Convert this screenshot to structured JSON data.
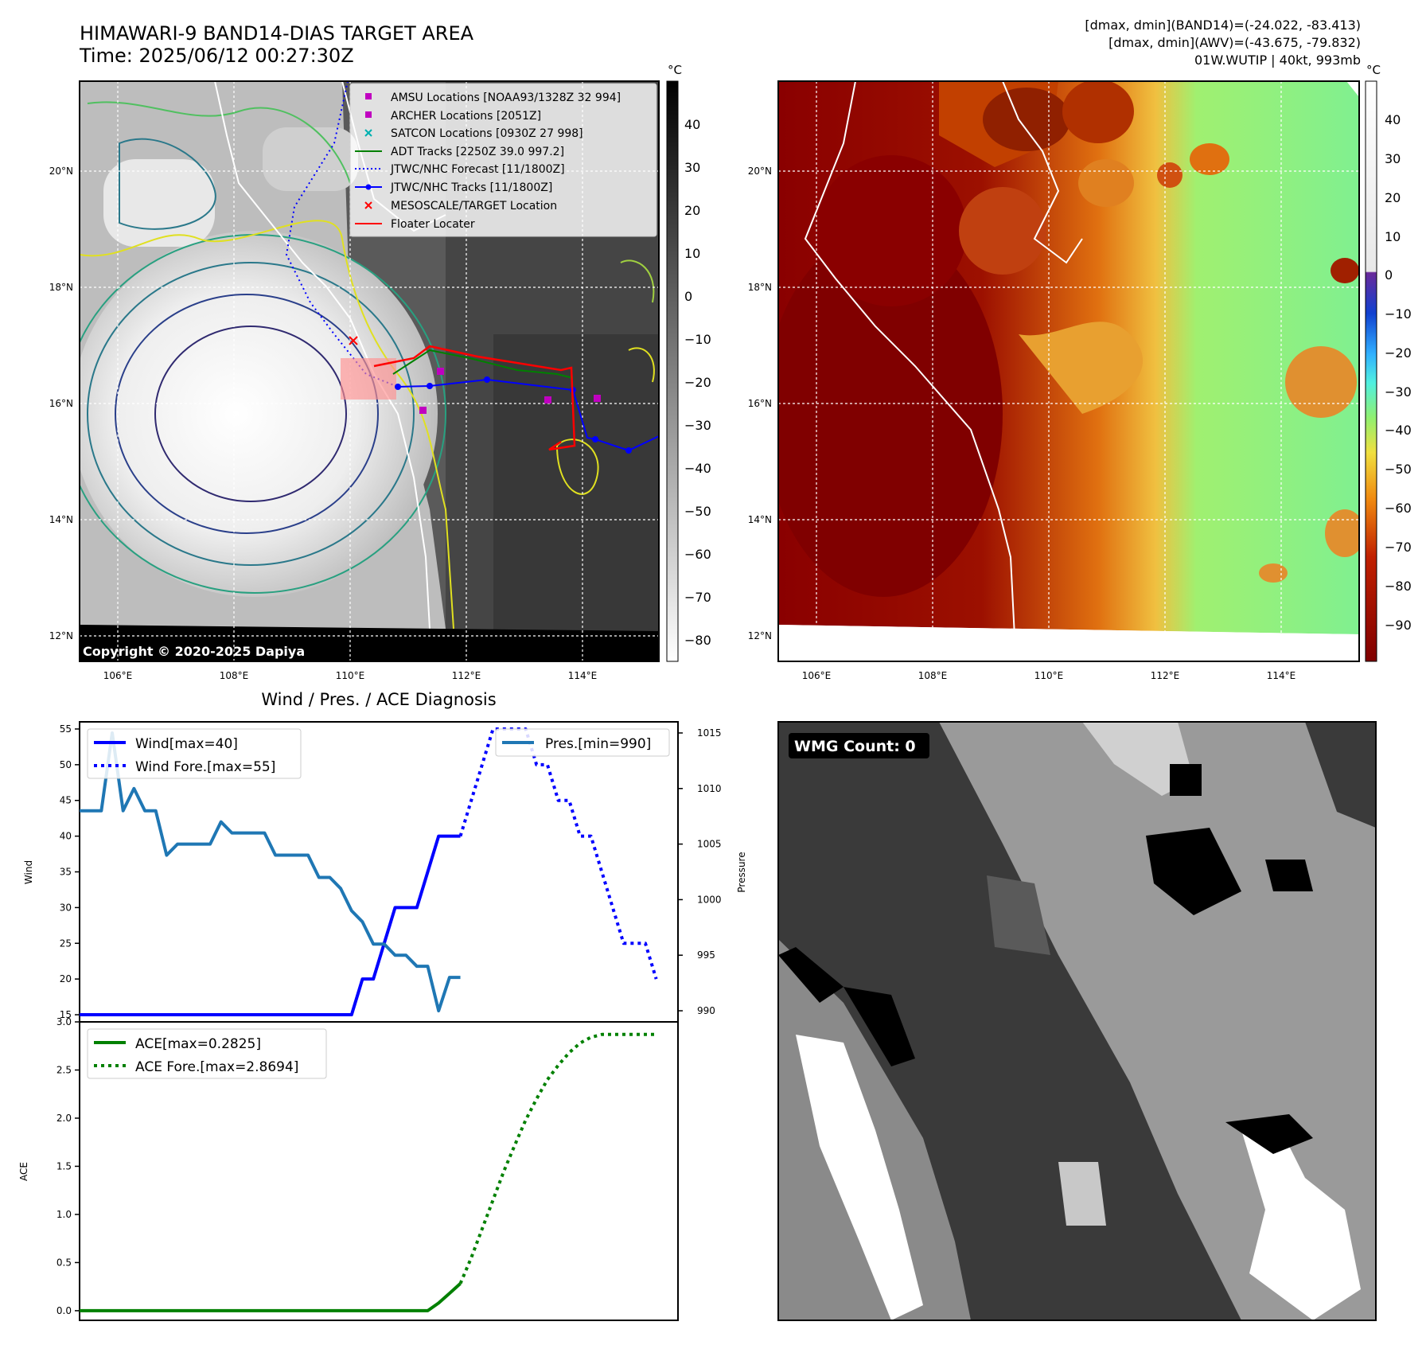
{
  "header": {
    "title_line1": "HIMAWARI-9 BAND14-DIAS TARGET AREA",
    "title_line2": "Time: 2025/06/12 00:27:30Z",
    "info_line1": "[dmax, dmin](BAND14)=(-24.022, -83.413)",
    "info_line2": "[dmax, dmin](AWV)=(-43.675, -79.832)",
    "info_line3": "01W.WUTIP | 40kt, 993mb"
  },
  "map_ir": {
    "lon_ticks": [
      "106°E",
      "108°E",
      "110°E",
      "112°E",
      "114°E"
    ],
    "lat_ticks": [
      "20°N",
      "18°N",
      "16°N",
      "14°N",
      "12°N"
    ],
    "copyright": "Copyright © 2020-2025 Dapiya",
    "colorbar_unit": "°C",
    "colorbar_ticks": [
      "40",
      "30",
      "20",
      "10",
      "0",
      "−10",
      "−20",
      "−30",
      "−40",
      "−50",
      "−60",
      "−70",
      "−80"
    ],
    "legend": [
      {
        "label": "AMSU Locations [NOAA93/1328Z 32 994]",
        "color": "#c000c0",
        "marker": "square"
      },
      {
        "label": "ARCHER Locations [2051Z]",
        "color": "#c000c0",
        "marker": "square"
      },
      {
        "label": "SATCON Locations [0930Z 27 998]",
        "color": "#00b0b0",
        "marker": "x"
      },
      {
        "label": "ADT Tracks [2250Z 39.0 997.2]",
        "color": "#008000",
        "marker": "line"
      },
      {
        "label": "JTWC/NHC Forecast [11/1800Z]",
        "color": "#0000ff",
        "marker": "dotted"
      },
      {
        "label": "JTWC/NHC Tracks [11/1800Z]",
        "color": "#0000ff",
        "marker": "line-dot"
      },
      {
        "label": "MESOSCALE/TARGET Location",
        "color": "#ff0000",
        "marker": "x"
      },
      {
        "label": "Floater Locater",
        "color": "#ff0000",
        "marker": "line"
      }
    ]
  },
  "map_wv": {
    "lon_ticks": [
      "106°E",
      "108°E",
      "110°E",
      "112°E",
      "114°E"
    ],
    "lat_ticks": [
      "20°N",
      "18°N",
      "16°N",
      "14°N",
      "12°N"
    ],
    "colorbar_unit": "°C",
    "colorbar_ticks": [
      "40",
      "30",
      "20",
      "10",
      "0",
      "−10",
      "−20",
      "−30",
      "−40",
      "−50",
      "−60",
      "−70",
      "−80",
      "−90"
    ]
  },
  "wmg": {
    "label": "WMG Count: 0"
  },
  "colors": {
    "wind": "#0000ff",
    "pressure": "#1f77b4",
    "ace": "#008000"
  },
  "chart_data": [
    {
      "type": "line",
      "title": "Wind / Pres. / ACE Diagnosis",
      "ylabel": "Wind",
      "y2label": "Pressure",
      "ylim": [
        14,
        56
      ],
      "y2lim": [
        989,
        1016
      ],
      "yticks": [
        15,
        20,
        25,
        30,
        35,
        40,
        45,
        50,
        55
      ],
      "y2ticks": [
        990,
        995,
        1000,
        1005,
        1010,
        1015
      ],
      "xlim": [
        0,
        55
      ],
      "series": [
        {
          "name": "Wind[max=40]",
          "style": "solid",
          "axis": "left",
          "x": [
            0,
            1,
            2,
            3,
            4,
            5,
            6,
            7,
            8,
            9,
            10,
            11,
            12,
            13,
            14,
            15,
            16,
            17,
            18,
            19,
            20,
            21,
            22,
            23,
            24,
            25,
            26,
            27,
            28,
            29,
            30,
            31,
            32,
            33,
            34,
            35
          ],
          "y": [
            15,
            15,
            15,
            15,
            15,
            15,
            15,
            15,
            15,
            15,
            15,
            15,
            15,
            15,
            15,
            15,
            15,
            15,
            15,
            15,
            15,
            15,
            15,
            15,
            15,
            15,
            20,
            20,
            25,
            30,
            30,
            30,
            35,
            40,
            40,
            40
          ]
        },
        {
          "name": "Wind Fore.[max=55]",
          "style": "dotted",
          "axis": "left",
          "x": [
            35,
            36,
            37,
            38,
            39,
            40,
            41,
            42,
            43,
            44,
            45,
            46,
            47,
            48,
            49,
            50,
            51,
            52,
            53
          ],
          "y": [
            40,
            45,
            50,
            55,
            55,
            55,
            55,
            50,
            50,
            45,
            45,
            40,
            40,
            35,
            30,
            25,
            25,
            25,
            20
          ]
        },
        {
          "name": "Pres.[min=990]",
          "style": "solid",
          "axis": "right",
          "x": [
            0,
            1,
            2,
            3,
            4,
            5,
            6,
            7,
            8,
            9,
            10,
            11,
            12,
            13,
            14,
            15,
            16,
            17,
            18,
            19,
            20,
            21,
            22,
            23,
            24,
            25,
            26,
            27,
            28,
            29,
            30,
            31,
            32,
            33,
            34,
            35
          ],
          "y": [
            1008,
            1008,
            1008,
            1015,
            1008,
            1010,
            1008,
            1008,
            1004,
            1005,
            1005,
            1005,
            1005,
            1007,
            1006,
            1006,
            1006,
            1006,
            1004,
            1004,
            1004,
            1004,
            1002,
            1002,
            1001,
            999,
            998,
            996,
            996,
            995,
            995,
            994,
            994,
            990,
            993,
            993
          ]
        }
      ]
    },
    {
      "type": "line",
      "ylabel": "ACE",
      "ylim": [
        -0.1,
        3.0
      ],
      "yticks": [
        0.0,
        0.5,
        1.0,
        1.5,
        2.0,
        2.5,
        3.0
      ],
      "xlim": [
        0,
        55
      ],
      "series": [
        {
          "name": "ACE[max=0.2825]",
          "style": "solid",
          "x": [
            0,
            1,
            2,
            3,
            4,
            5,
            6,
            7,
            8,
            9,
            10,
            11,
            12,
            13,
            14,
            15,
            16,
            17,
            18,
            19,
            20,
            21,
            22,
            23,
            24,
            25,
            26,
            27,
            28,
            29,
            30,
            31,
            32,
            33,
            34,
            35
          ],
          "y": [
            0,
            0,
            0,
            0,
            0,
            0,
            0,
            0,
            0,
            0,
            0,
            0,
            0,
            0,
            0,
            0,
            0,
            0,
            0,
            0,
            0,
            0,
            0,
            0,
            0,
            0,
            0,
            0,
            0,
            0,
            0,
            0,
            0,
            0.08,
            0.18,
            0.2825
          ]
        },
        {
          "name": "ACE Fore.[max=2.8694]",
          "style": "dotted",
          "x": [
            35,
            36,
            37,
            38,
            39,
            40,
            41,
            42,
            43,
            44,
            45,
            46,
            47,
            48,
            49,
            50,
            51,
            52,
            53
          ],
          "y": [
            0.2825,
            0.55,
            0.85,
            1.15,
            1.45,
            1.72,
            1.98,
            2.2,
            2.4,
            2.55,
            2.68,
            2.78,
            2.84,
            2.8694,
            2.8694,
            2.8694,
            2.8694,
            2.8694,
            2.8694
          ]
        }
      ]
    }
  ]
}
